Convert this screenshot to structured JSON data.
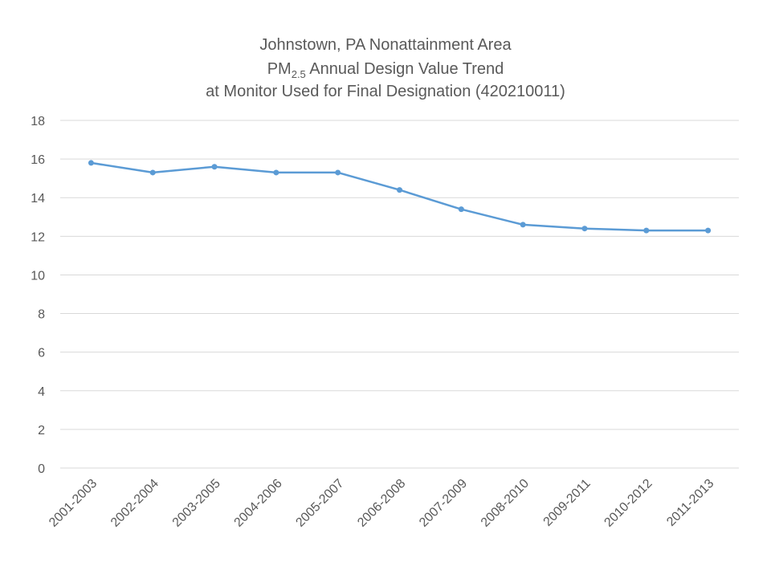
{
  "chart_data": {
    "type": "line",
    "title": {
      "line1": "Johnstown, PA Nonattainment Area",
      "line2_main": "PM",
      "line2_sub": "2.5",
      "line2_rest": " Annual Design Value Trend",
      "line3": "at Monitor Used for Final Designation (420210011)"
    },
    "xlabel": "",
    "ylabel": "",
    "categories": [
      "2001-2003",
      "2002-2004",
      "2003-2005",
      "2004-2006",
      "2005-2007",
      "2006-2008",
      "2007-2009",
      "2008-2010",
      "2009-2011",
      "2010-2012",
      "2011-2013"
    ],
    "series": [
      {
        "values": [
          15.8,
          15.3,
          15.6,
          15.3,
          15.3,
          14.4,
          13.4,
          12.6,
          12.4,
          12.3,
          12.3
        ]
      }
    ],
    "ylim": [
      0,
      18
    ],
    "yticks": [
      0,
      2,
      4,
      6,
      8,
      10,
      12,
      14,
      16,
      18
    ],
    "grid": true,
    "legend": "none"
  },
  "colors": {
    "series": "#5b9bd5",
    "grid": "#d9d9d9",
    "text": "#595959"
  }
}
